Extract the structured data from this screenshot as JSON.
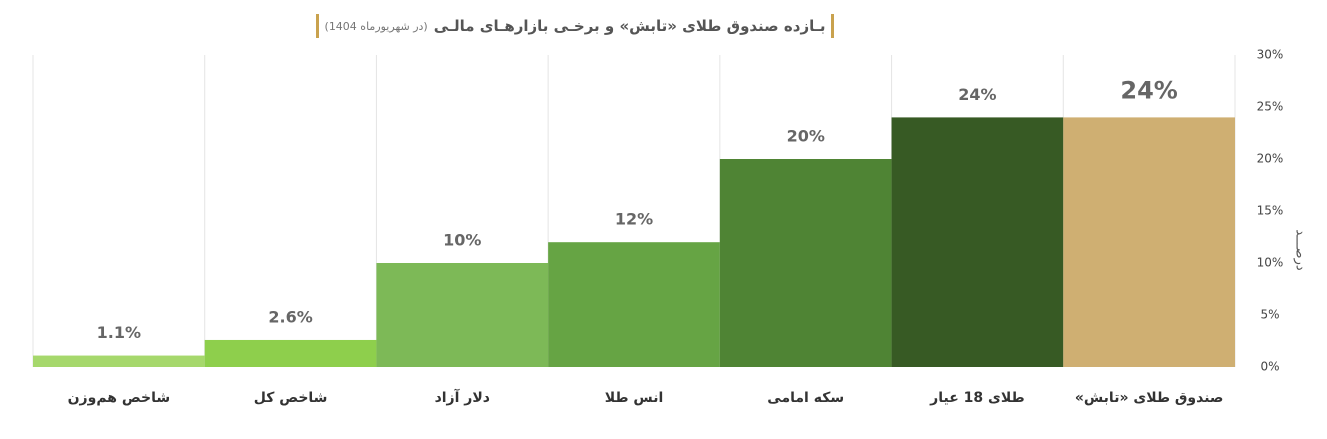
{
  "chart_data": {
    "type": "bar",
    "title": "بـازده صندوق طلای «تابش» و برخـی بازارهـای مالـی",
    "subtitle": "(در شهریورماه 1404)",
    "y_label": "درصـــد",
    "categories": [
      "شاخص هم‌وزن",
      "شاخص کل",
      "دلار آزاد",
      "انس طلا",
      "سکه امامی",
      "طلای 18 عیار",
      "صندوق طلای «تابش»"
    ],
    "values": [
      1.1,
      2.6,
      10,
      12,
      20,
      24,
      24
    ],
    "value_labels": [
      "1.1%",
      "2.6%",
      "10%",
      "12%",
      "20%",
      "24%",
      "24%"
    ],
    "colors": [
      "#a6d86c",
      "#8ecf4c",
      "#7db957",
      "#66a444",
      "#4f8434",
      "#375a24",
      "#cfaf72"
    ],
    "ylim": [
      0,
      30
    ],
    "yticks": [
      {
        "value": 0,
        "label": "0%"
      },
      {
        "value": 5,
        "label": "5%"
      },
      {
        "value": 10,
        "label": "10%"
      },
      {
        "value": 15,
        "label": "15%"
      },
      {
        "value": 20,
        "label": "20%"
      },
      {
        "value": 25,
        "label": "25%"
      },
      {
        "value": 30,
        "label": "30%"
      }
    ],
    "grid": true
  }
}
